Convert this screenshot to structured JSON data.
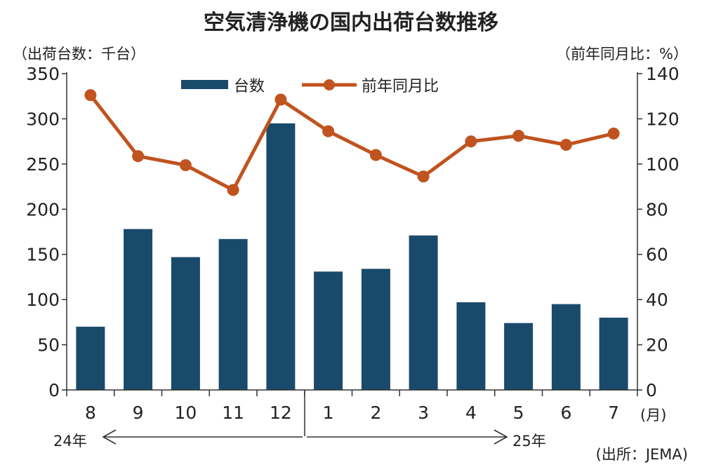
{
  "chart_data": {
    "type": "bar",
    "title": "空気清浄機の国内出荷台数推移",
    "left_axis_unit": "（出荷台数：千台）",
    "right_axis_unit": "（前年同月比：%）",
    "x_unit": "(月)",
    "source": "(出所：JEMA)",
    "year_labels": [
      "24年",
      "25年"
    ],
    "categories": [
      "8",
      "9",
      "10",
      "11",
      "12",
      "1",
      "2",
      "3",
      "4",
      "5",
      "6",
      "7"
    ],
    "series": [
      {
        "name": "台数",
        "kind": "bar",
        "axis": "left",
        "color": "#1a4a6b",
        "values": [
          70,
          178,
          147,
          167,
          295,
          131,
          134,
          171,
          97,
          74,
          95,
          80
        ]
      },
      {
        "name": "前年同月比",
        "kind": "line",
        "axis": "right",
        "color": "#c0531f",
        "values": [
          130.5,
          103.5,
          99.5,
          88.5,
          128.5,
          114.5,
          104,
          94.5,
          110,
          112.5,
          108.5,
          113.5
        ]
      }
    ],
    "ylim_left": [
      0,
      350
    ],
    "yticks_left": [
      0,
      50,
      100,
      150,
      200,
      250,
      300,
      350
    ],
    "ylim_right": [
      0,
      140
    ],
    "yticks_right": [
      0,
      20,
      40,
      60,
      80,
      100,
      120,
      140
    ],
    "grid": false,
    "legend_position": "top-center"
  }
}
